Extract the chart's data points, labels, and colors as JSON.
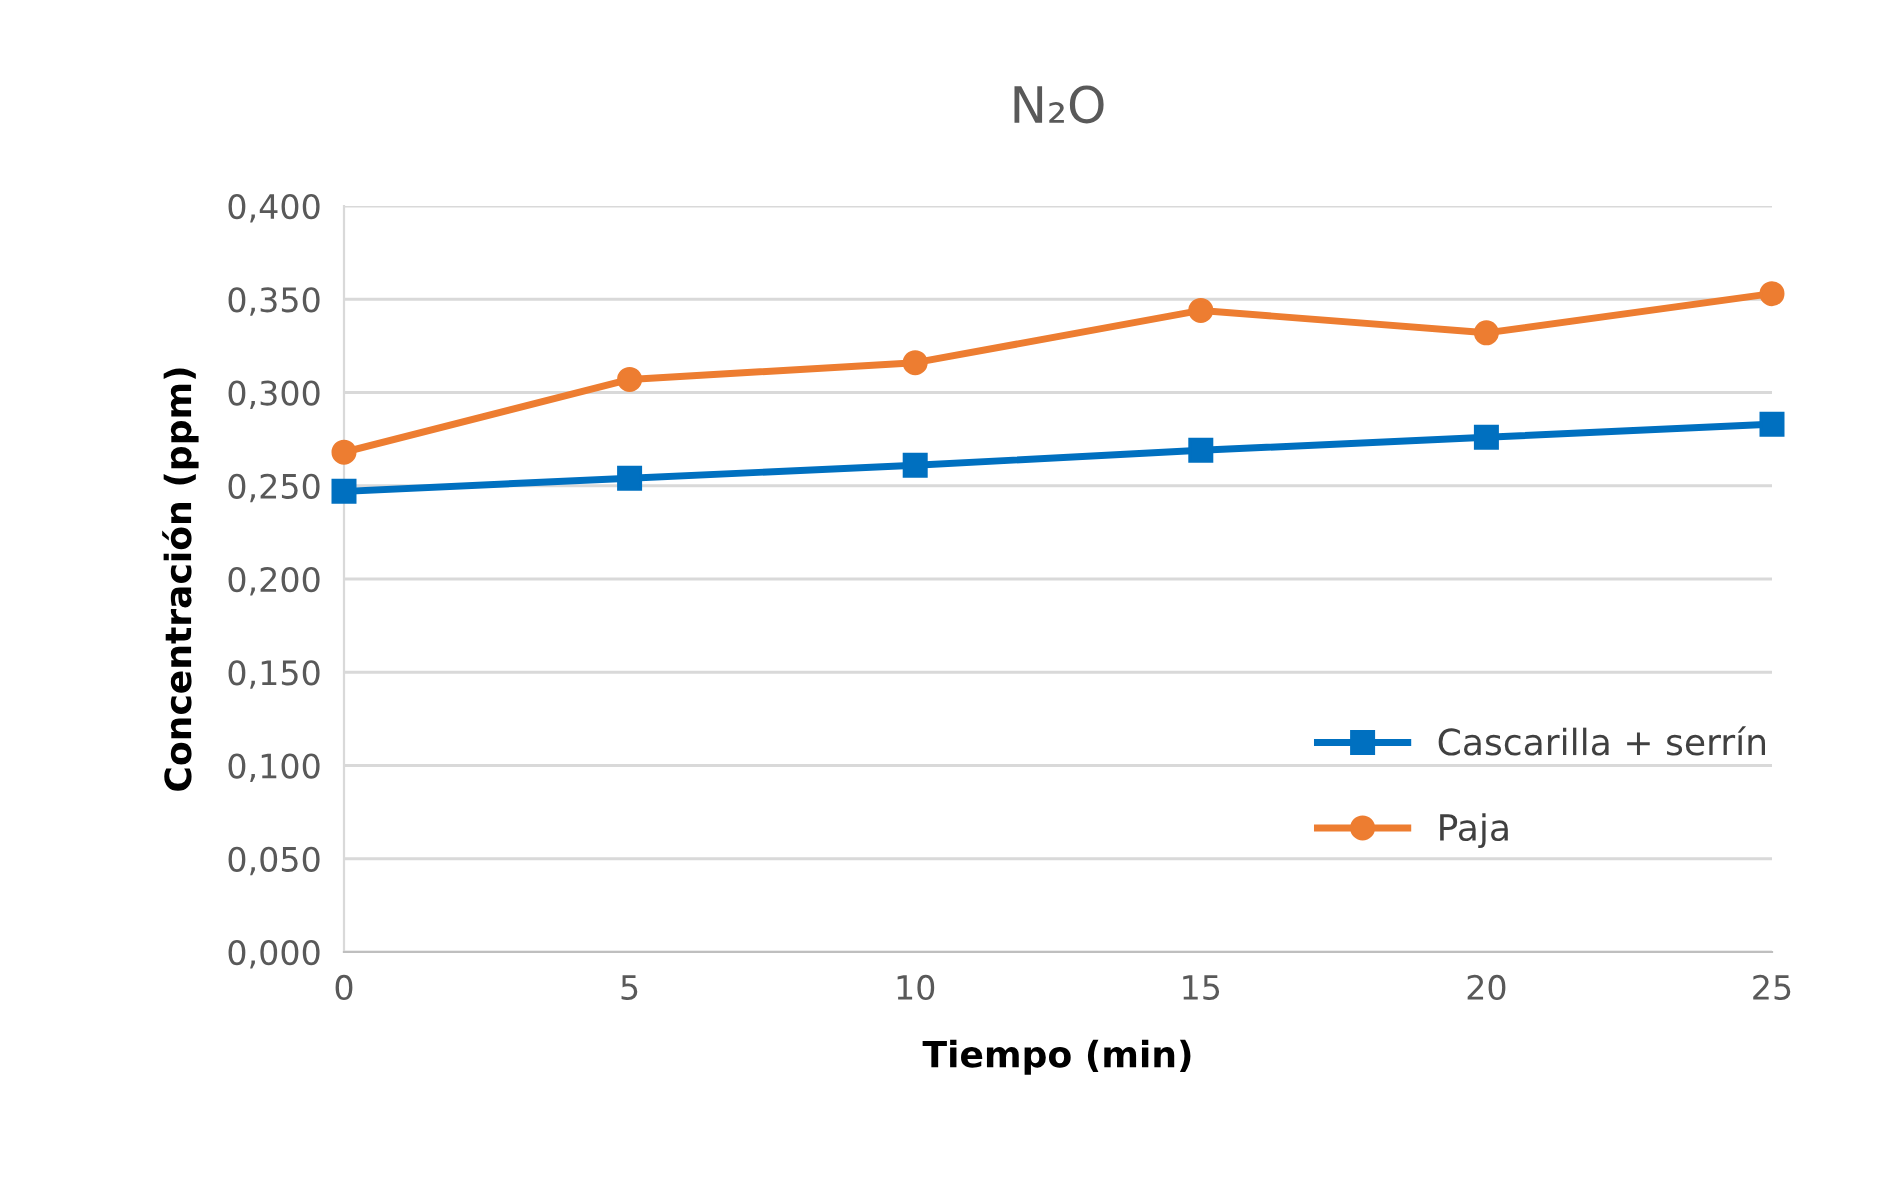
{
  "chart_data": {
    "type": "line",
    "title": "N₂O",
    "xlabel": "Tiempo (min)",
    "ylabel": "Concentración (ppm)",
    "x": [
      0,
      5,
      10,
      15,
      20,
      25
    ],
    "series": [
      {
        "name": "Cascarilla + serrín",
        "color": "#0070c0",
        "marker": "square",
        "values": [
          0.247,
          0.254,
          0.261,
          0.269,
          0.276,
          0.283
        ]
      },
      {
        "name": "Paja",
        "color": "#ed7d31",
        "marker": "circle",
        "values": [
          0.268,
          0.307,
          0.316,
          0.344,
          0.332,
          0.353
        ]
      }
    ],
    "xlim": [
      0,
      25
    ],
    "xticks": [
      0,
      5,
      10,
      15,
      20,
      25
    ],
    "ylim": [
      0,
      0.4
    ],
    "yticks": [
      {
        "value": 0,
        "label": "0,000"
      },
      {
        "value": 0.05,
        "label": "0,050"
      },
      {
        "value": 0.1,
        "label": "0,100"
      },
      {
        "value": 0.15,
        "label": "0,150"
      },
      {
        "value": 0.2,
        "label": "0,200"
      },
      {
        "value": 0.25,
        "label": "0,250"
      },
      {
        "value": 0.3,
        "label": "0,300"
      },
      {
        "value": 0.35,
        "label": "0,350"
      },
      {
        "value": 0.4,
        "label": "0,400"
      }
    ],
    "grid": "y",
    "legend": "right",
    "line_style": "solid"
  }
}
